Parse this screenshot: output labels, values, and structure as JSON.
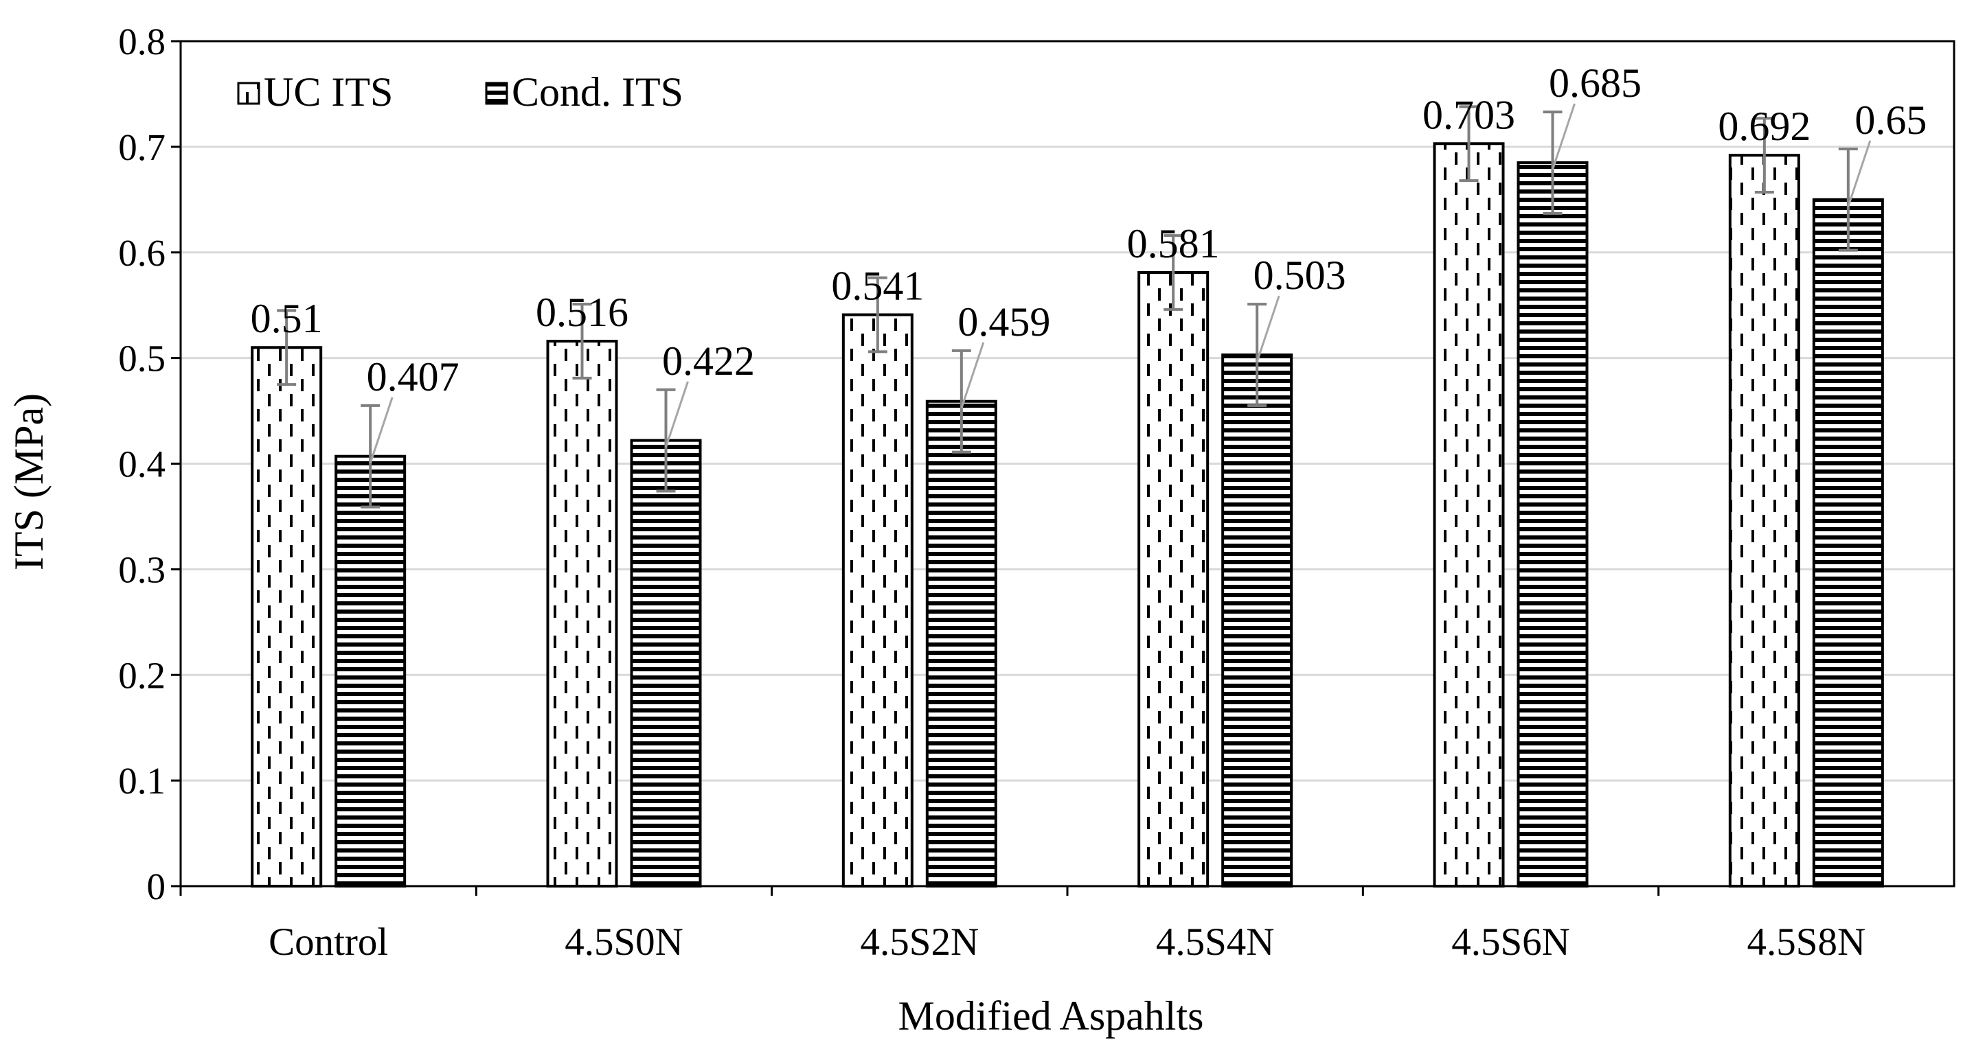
{
  "chart_data": {
    "type": "bar",
    "title": "",
    "xlabel": "Modified Aspahlts",
    "ylabel": "ITS (MPa)",
    "ylim": [
      0,
      0.8
    ],
    "yticks": [
      "0",
      "0.1",
      "0.2",
      "0.3",
      "0.4",
      "0.5",
      "0.6",
      "0.7",
      "0.8"
    ],
    "grid": true,
    "legend_position": "top-left",
    "categories": [
      "Control",
      "4.5S0N",
      "4.5S2N",
      "4.5S4N",
      "4.5S6N",
      "4.5S8N"
    ],
    "series": [
      {
        "name": "UC ITS",
        "pattern": "dashed-dots",
        "values": [
          0.51,
          0.516,
          0.541,
          0.581,
          0.703,
          0.692
        ],
        "labels": [
          "0.51",
          "0.516",
          "0.541",
          "0.581",
          "0.703",
          "0.692"
        ],
        "error": [
          0.035,
          0.035,
          0.035,
          0.035,
          0.035,
          0.035
        ]
      },
      {
        "name": "Cond. ITS",
        "pattern": "horizontal-lines",
        "values": [
          0.407,
          0.422,
          0.459,
          0.503,
          0.685,
          0.65
        ],
        "labels": [
          "0.407",
          "0.422",
          "0.459",
          "0.503",
          "0.685",
          "0.65"
        ],
        "error": [
          0.048,
          0.048,
          0.048,
          0.048,
          0.048,
          0.048
        ]
      }
    ]
  },
  "colors": {
    "bar_edge": "#000000",
    "gridline": "#d9d9d9",
    "error_bar": "#7f7f7f",
    "leader_line": "#a6a6a6"
  }
}
